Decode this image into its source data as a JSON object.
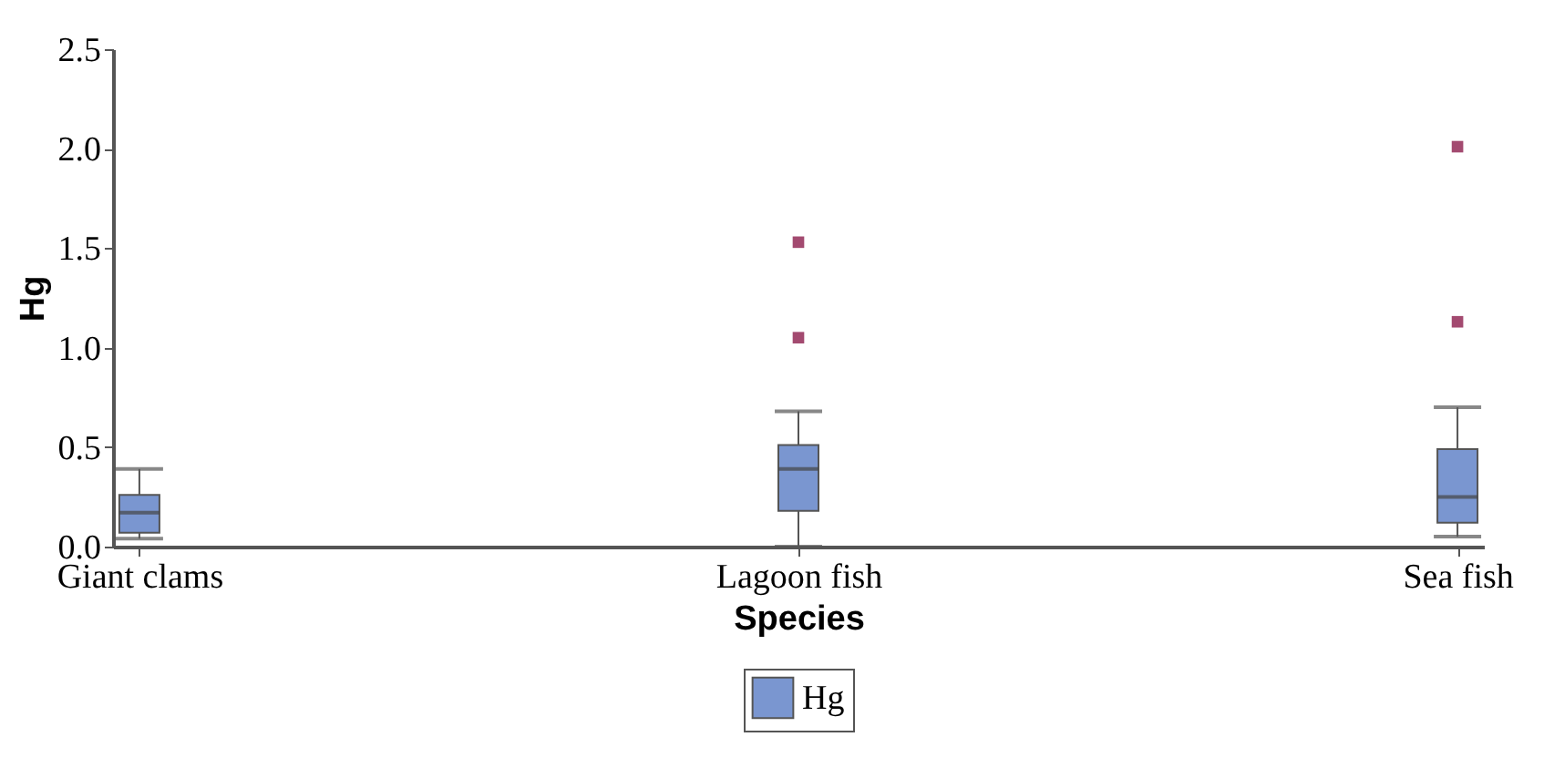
{
  "chart_data": {
    "type": "box",
    "xlabel": "Species",
    "ylabel": "Hg",
    "categories": [
      "Giant clams",
      "Lagoon fish",
      "Sea fish"
    ],
    "ylim": [
      0,
      2.5
    ],
    "yticks": [
      {
        "value": 0,
        "label": "0.0"
      },
      {
        "value": 0.5,
        "label": "0.5"
      },
      {
        "value": 1,
        "label": "1.0"
      },
      {
        "value": 1.5,
        "label": "1.5"
      },
      {
        "value": 2,
        "label": "2.0"
      },
      {
        "value": 2.5,
        "label": "2.5"
      }
    ],
    "grid": false,
    "legend": "bottom",
    "series": [
      {
        "name": "Hg",
        "color": "#7a96d0",
        "boxes": [
          {
            "low": 0.04,
            "q1": 0.07,
            "median": 0.17,
            "q3": 0.26,
            "high": 0.39
          },
          {
            "low": 0.0,
            "q1": 0.18,
            "median": 0.39,
            "q3": 0.51,
            "high": 0.68,
            "outliers": [
              1.05,
              1.53
            ]
          },
          {
            "low": 0.05,
            "q1": 0.12,
            "median": 0.25,
            "q3": 0.49,
            "high": 0.7,
            "outliers": [
              1.13,
              2.01
            ]
          }
        ]
      }
    ]
  }
}
